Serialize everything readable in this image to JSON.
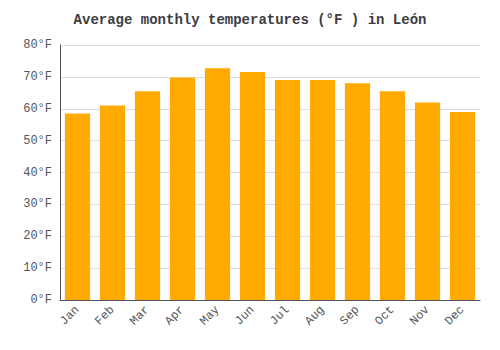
{
  "chart_data": {
    "type": "bar",
    "title": "Average monthly temperatures (°F ) in León",
    "categories": [
      "Jan",
      "Feb",
      "Mar",
      "Apr",
      "May",
      "Jun",
      "Jul",
      "Aug",
      "Sep",
      "Oct",
      "Nov",
      "Dec"
    ],
    "values": [
      58.5,
      61.0,
      65.5,
      69.8,
      72.7,
      71.5,
      69.0,
      69.0,
      68.0,
      65.5,
      62.0,
      59.0
    ],
    "color": "#FFAA00",
    "ylim": [
      0,
      80
    ],
    "yticks": [
      {
        "value": 0,
        "label": "0°F"
      },
      {
        "value": 10,
        "label": "10°F"
      },
      {
        "value": 20,
        "label": "20°F"
      },
      {
        "value": 30,
        "label": "30°F"
      },
      {
        "value": 40,
        "label": "40°F"
      },
      {
        "value": 50,
        "label": "50°F"
      },
      {
        "value": 60,
        "label": "60°F"
      },
      {
        "value": 70,
        "label": "70°F"
      },
      {
        "value": 80,
        "label": "80°F"
      }
    ],
    "grid": true
  }
}
